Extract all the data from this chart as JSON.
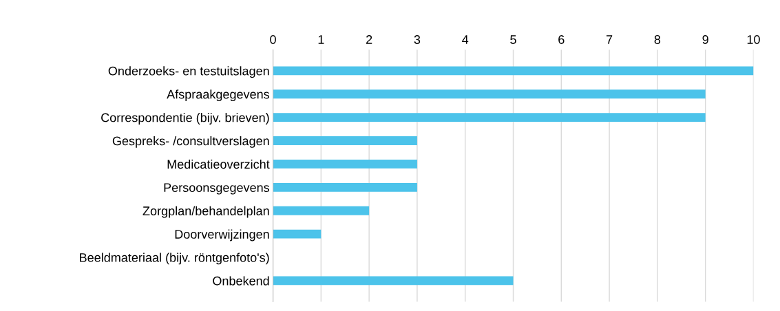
{
  "chart_data": {
    "type": "bar",
    "orientation": "horizontal",
    "categories": [
      "Onderzoeks- en testuitslagen",
      "Afspraakgegevens",
      "Correspondentie (bijv. brieven)",
      "Gespreks- /consultverslagen",
      "Medicatieoverzicht",
      "Persoonsgegevens",
      "Zorgplan/behandelplan",
      "Doorverwijzingen",
      "Beeldmateriaal (bijv. röntgenfoto's)",
      "Onbekend"
    ],
    "values": [
      10,
      9,
      9,
      3,
      3,
      3,
      2,
      1,
      0,
      5
    ],
    "color": "#4cc3ea",
    "xlim": [
      0,
      10
    ],
    "xticks": [
      0,
      1,
      2,
      3,
      4,
      5,
      6,
      7,
      8,
      9,
      10
    ],
    "grid": "x",
    "legend": false
  }
}
